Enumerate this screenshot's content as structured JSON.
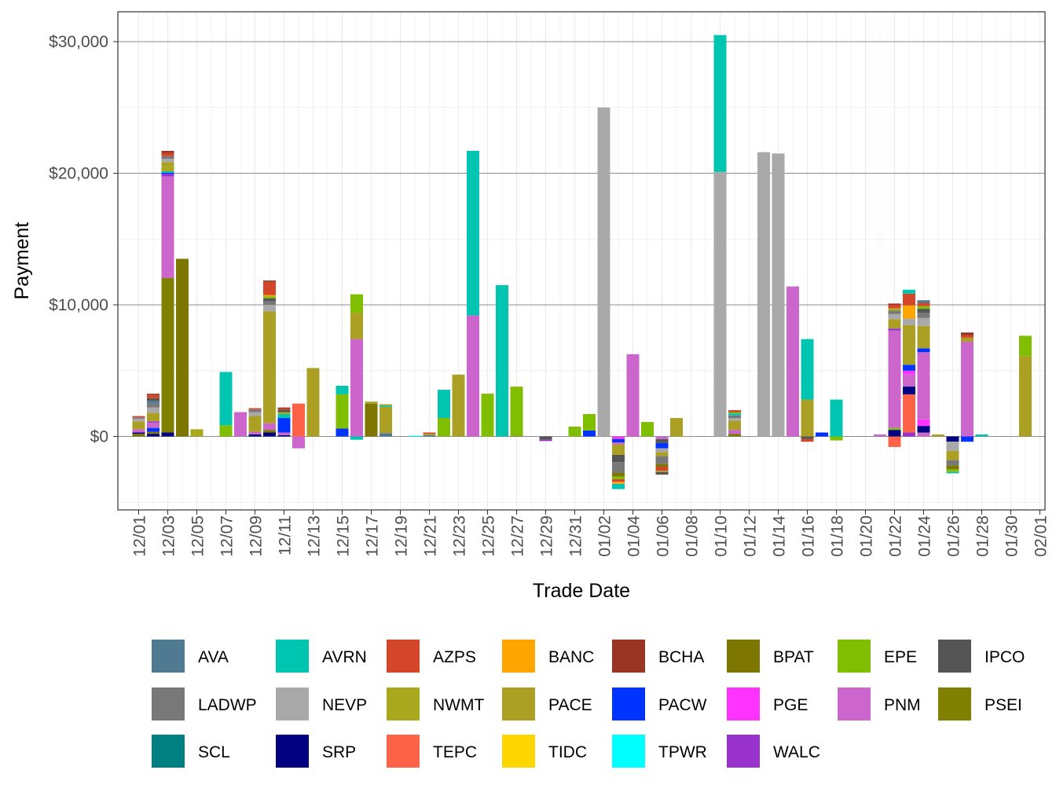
{
  "chart_data": {
    "type": "bar",
    "stacked": true,
    "xlabel": "Trade Date",
    "ylabel": "Payment",
    "ylim": [
      -5700,
      32200
    ],
    "yticks": [
      0,
      10000,
      20000,
      30000
    ],
    "ytick_labels": [
      "$0",
      "$10,000",
      "$20,000",
      "$30,000"
    ],
    "x_tick_labels": [
      "12/01",
      "12/03",
      "12/05",
      "12/07",
      "12/09",
      "12/11",
      "12/13",
      "12/15",
      "12/17",
      "12/19",
      "12/21",
      "12/23",
      "12/25",
      "12/27",
      "12/29",
      "12/31",
      "01/02",
      "01/04",
      "01/06",
      "01/08",
      "01/10",
      "01/12",
      "01/14",
      "01/16",
      "01/18",
      "01/20",
      "01/22",
      "01/24",
      "01/26",
      "01/28",
      "01/30",
      "02/01"
    ],
    "grid": true,
    "legend_position": "bottom",
    "legend": [
      {
        "name": "AVA",
        "color": "#4f7a91"
      },
      {
        "name": "AVRN",
        "color": "#00c5b0"
      },
      {
        "name": "AZPS",
        "color": "#d4462a"
      },
      {
        "name": "BANC",
        "color": "#ffa500"
      },
      {
        "name": "BCHA",
        "color": "#9a3524"
      },
      {
        "name": "BPAT",
        "color": "#7d7600"
      },
      {
        "name": "EPE",
        "color": "#7fbe00"
      },
      {
        "name": "IPCO",
        "color": "#555555"
      },
      {
        "name": "LADWP",
        "color": "#787878"
      },
      {
        "name": "NEVP",
        "color": "#a9a9a9"
      },
      {
        "name": "NWMT",
        "color": "#aaa81e"
      },
      {
        "name": "PACE",
        "color": "#aca024"
      },
      {
        "name": "PACW",
        "color": "#0033ff"
      },
      {
        "name": "PGE",
        "color": "#ff33ff"
      },
      {
        "name": "PNM",
        "color": "#cc66cc"
      },
      {
        "name": "PSEI",
        "color": "#808000"
      },
      {
        "name": "SCL",
        "color": "#008080"
      },
      {
        "name": "SRP",
        "color": "#000080"
      },
      {
        "name": "TEPC",
        "color": "#ff6347"
      },
      {
        "name": "TIDC",
        "color": "#ffd700"
      },
      {
        "name": "TPWR",
        "color": "#00ffff"
      },
      {
        "name": "WALC",
        "color": "#9932cc"
      }
    ],
    "days": [
      {
        "date": "12/01",
        "segments": [
          [
            "BPAT",
            200
          ],
          [
            "SRP",
            100
          ],
          [
            "PNM",
            250
          ],
          [
            "PACE",
            600
          ],
          [
            "NEVP",
            200
          ],
          [
            "LADWP",
            100
          ],
          [
            "AZPS",
            100
          ]
        ]
      },
      {
        "date": "12/02",
        "segments": [
          [
            "SRP",
            200
          ],
          [
            "BPAT",
            150
          ],
          [
            "PACW",
            300
          ],
          [
            "PNM",
            400
          ],
          [
            "WALC",
            100
          ],
          [
            "PACE",
            650
          ],
          [
            "NEVP",
            400
          ],
          [
            "LADWP",
            300
          ],
          [
            "AVA",
            200
          ],
          [
            "IPCO",
            200
          ],
          [
            "AZPS",
            250
          ],
          [
            "BCHA",
            100
          ]
        ]
      },
      {
        "date": "12/03",
        "segments": [
          [
            "SRP",
            300
          ],
          [
            "PSEI",
            11750
          ],
          [
            "PNM",
            7700
          ],
          [
            "WALC",
            200
          ],
          [
            "PACW",
            100
          ],
          [
            "AVRN",
            100
          ],
          [
            "NWMT",
            400
          ],
          [
            "PACE",
            300
          ],
          [
            "NEVP",
            250
          ],
          [
            "LADWP",
            200
          ],
          [
            "AZPS",
            250
          ],
          [
            "BCHA",
            150
          ]
        ]
      },
      {
        "date": "12/04",
        "segments": [
          [
            "BPAT",
            13500
          ]
        ]
      },
      {
        "date": "12/05",
        "segments": [
          [
            "NWMT",
            550
          ]
        ]
      },
      {
        "date": "12/06",
        "segments": []
      },
      {
        "date": "12/07",
        "segments": [
          [
            "EPE",
            850
          ],
          [
            "AVRN",
            4050
          ]
        ]
      },
      {
        "date": "12/08",
        "segments": [
          [
            "PNM",
            1850
          ]
        ]
      },
      {
        "date": "12/09",
        "segments": [
          [
            "SRP",
            150
          ],
          [
            "PNM",
            200
          ],
          [
            "PACE",
            1200
          ],
          [
            "NEVP",
            300
          ],
          [
            "LADWP",
            200
          ],
          [
            "AZPS",
            100
          ]
        ]
      },
      {
        "date": "12/10",
        "segments": [
          [
            "SRP",
            300
          ],
          [
            "BPAT",
            200
          ],
          [
            "PNM",
            500
          ],
          [
            "PACE",
            8500
          ],
          [
            "NEVP",
            500
          ],
          [
            "LADWP",
            300
          ],
          [
            "IPCO",
            200
          ],
          [
            "EPE",
            150
          ],
          [
            "BANC",
            100
          ],
          [
            "AZPS",
            1000
          ],
          [
            "BCHA",
            100
          ]
        ]
      },
      {
        "date": "12/11",
        "segments": [
          [
            "SRP",
            100
          ],
          [
            "PNM",
            200
          ],
          [
            "PACW",
            1100
          ],
          [
            "AVRN",
            300
          ],
          [
            "NWMT",
            150
          ],
          [
            "IPCO",
            150
          ],
          [
            "AZPS",
            100
          ],
          [
            "BCHA",
            100
          ]
        ]
      },
      {
        "date": "12/12",
        "segments": [
          [
            "PNM",
            -900
          ],
          [
            "TEPC",
            2500
          ]
        ]
      },
      {
        "date": "12/13",
        "segments": [
          [
            "PACE",
            5200
          ]
        ]
      },
      {
        "date": "12/14",
        "segments": []
      },
      {
        "date": "12/15",
        "segments": [
          [
            "PACW",
            600
          ],
          [
            "EPE",
            2600
          ],
          [
            "AVRN",
            650
          ]
        ]
      },
      {
        "date": "12/16",
        "segments": [
          [
            "AVRN",
            -250
          ],
          [
            "PNM",
            7400
          ],
          [
            "PACE",
            2000
          ],
          [
            "EPE",
            1400
          ]
        ]
      },
      {
        "date": "12/17",
        "segments": [
          [
            "BPAT",
            2500
          ],
          [
            "NWMT",
            150
          ]
        ]
      },
      {
        "date": "12/18",
        "segments": [
          [
            "AVA",
            250
          ],
          [
            "PACE",
            2000
          ],
          [
            "AVRN",
            100
          ],
          [
            "NWMT",
            100
          ]
        ]
      },
      {
        "date": "12/19",
        "segments": []
      },
      {
        "date": "12/20",
        "segments": [
          [
            "TPWR",
            60
          ]
        ]
      },
      {
        "date": "12/21",
        "segments": [
          [
            "AVA",
            100
          ],
          [
            "PACE",
            100
          ],
          [
            "AZPS",
            100
          ]
        ]
      },
      {
        "date": "12/22",
        "segments": [
          [
            "EPE",
            1400
          ],
          [
            "AVRN",
            2150
          ]
        ]
      },
      {
        "date": "12/23",
        "segments": [
          [
            "PACE",
            4700
          ]
        ]
      },
      {
        "date": "12/24",
        "segments": [
          [
            "PNM",
            9200
          ],
          [
            "AVRN",
            12500
          ]
        ]
      },
      {
        "date": "12/25",
        "segments": [
          [
            "EPE",
            3250
          ]
        ]
      },
      {
        "date": "12/26",
        "segments": [
          [
            "AVRN",
            11500
          ]
        ]
      },
      {
        "date": "12/27",
        "segments": [
          [
            "PSEI",
            50
          ],
          [
            "EPE",
            3700
          ],
          [
            "PACE",
            50
          ]
        ]
      },
      {
        "date": "12/28",
        "segments": []
      },
      {
        "date": "12/29",
        "segments": [
          [
            "IPCO",
            -250
          ],
          [
            "WALC",
            -100
          ]
        ]
      },
      {
        "date": "12/30",
        "segments": []
      },
      {
        "date": "12/31",
        "segments": [
          [
            "EPE",
            750
          ]
        ]
      },
      {
        "date": "01/01",
        "segments": [
          [
            "PACW",
            450
          ],
          [
            "EPE",
            1250
          ]
        ]
      },
      {
        "date": "01/02",
        "segments": [
          [
            "NEVP",
            25000
          ]
        ]
      },
      {
        "date": "01/03",
        "segments": [
          [
            "PGE",
            -200
          ],
          [
            "PACW",
            -250
          ],
          [
            "PNM",
            -150
          ],
          [
            "PACE",
            -800
          ],
          [
            "IPCO",
            -550
          ],
          [
            "LADWP",
            -800
          ],
          [
            "BPAT",
            -300
          ],
          [
            "EPE",
            -200
          ],
          [
            "AZPS",
            -200
          ],
          [
            "BANC",
            -150
          ],
          [
            "AVRN",
            -400
          ]
        ]
      },
      {
        "date": "01/04",
        "segments": [
          [
            "PNM",
            6250
          ]
        ]
      },
      {
        "date": "01/05",
        "segments": [
          [
            "EPE",
            1100
          ]
        ]
      },
      {
        "date": "01/06",
        "segments": [
          [
            "PNM",
            -200
          ],
          [
            "IPCO",
            -300
          ],
          [
            "PACW",
            -400
          ],
          [
            "NEVP",
            -300
          ],
          [
            "PACE",
            -300
          ],
          [
            "LADWP",
            -600
          ],
          [
            "BPAT",
            -200
          ],
          [
            "AZPS",
            -300
          ],
          [
            "NWMT",
            -100
          ],
          [
            "IPCO",
            -200
          ]
        ]
      },
      {
        "date": "01/07",
        "segments": [
          [
            "PACE",
            1400
          ]
        ]
      },
      {
        "date": "01/08",
        "segments": []
      },
      {
        "date": "01/09",
        "segments": []
      },
      {
        "date": "01/10",
        "segments": [
          [
            "NEVP",
            20100
          ],
          [
            "AVRN",
            10400
          ]
        ]
      },
      {
        "date": "01/11",
        "segments": [
          [
            "BPAT",
            200
          ],
          [
            "PNM",
            300
          ],
          [
            "PACE",
            700
          ],
          [
            "NEVP",
            200
          ],
          [
            "LADWP",
            200
          ],
          [
            "AVRN",
            150
          ],
          [
            "EPE",
            100
          ],
          [
            "AZPS",
            150
          ]
        ]
      },
      {
        "date": "01/12",
        "segments": []
      },
      {
        "date": "01/13",
        "segments": [
          [
            "NEVP",
            21600
          ]
        ]
      },
      {
        "date": "01/14",
        "segments": [
          [
            "NEVP",
            21500
          ]
        ]
      },
      {
        "date": "01/15",
        "segments": [
          [
            "PNM",
            11400
          ]
        ]
      },
      {
        "date": "01/16",
        "segments": [
          [
            "PACE",
            2800
          ],
          [
            "AVRN",
            4600
          ],
          [
            "IPCO",
            -200
          ],
          [
            "AZPS",
            -200
          ]
        ]
      },
      {
        "date": "01/17",
        "segments": [
          [
            "PACW",
            300
          ]
        ]
      },
      {
        "date": "01/18",
        "segments": [
          [
            "EPE",
            -300
          ],
          [
            "AVRN",
            2800
          ]
        ]
      },
      {
        "date": "01/19",
        "segments": []
      },
      {
        "date": "01/20",
        "segments": []
      },
      {
        "date": "01/21",
        "segments": [
          [
            "PNM",
            150
          ]
        ]
      },
      {
        "date": "01/22",
        "segments": [
          [
            "TEPC",
            -800
          ],
          [
            "SRP",
            500
          ],
          [
            "EPE",
            150
          ],
          [
            "PNM",
            7400
          ],
          [
            "WALC",
            150
          ],
          [
            "PACE",
            700
          ],
          [
            "NEVP",
            400
          ],
          [
            "LADWP",
            250
          ],
          [
            "NWMT",
            200
          ],
          [
            "AZPS",
            250
          ],
          [
            "BCHA",
            100
          ]
        ]
      },
      {
        "date": "01/23",
        "segments": [
          [
            "WALC",
            300
          ],
          [
            "TEPC",
            2900
          ],
          [
            "SRP",
            600
          ],
          [
            "PNM",
            900
          ],
          [
            "PGE",
            300
          ],
          [
            "PACW",
            450
          ],
          [
            "PACE",
            3000
          ],
          [
            "NEVP",
            500
          ],
          [
            "BANC",
            1000
          ],
          [
            "AZPS",
            900
          ],
          [
            "AVRN",
            300
          ]
        ]
      },
      {
        "date": "01/24",
        "segments": [
          [
            "PNM",
            300
          ],
          [
            "SRP",
            500
          ],
          [
            "PGE",
            500
          ],
          [
            "PNM",
            5100
          ],
          [
            "PACW",
            300
          ],
          [
            "PACE",
            1700
          ],
          [
            "NEVP",
            600
          ],
          [
            "LADWP",
            400
          ],
          [
            "IPCO",
            300
          ],
          [
            "EPE",
            200
          ],
          [
            "AZPS",
            250
          ],
          [
            "AVA",
            200
          ]
        ]
      },
      {
        "date": "01/25",
        "segments": [
          [
            "PACE",
            150
          ]
        ]
      },
      {
        "date": "01/26",
        "segments": [
          [
            "SRP",
            -400
          ],
          [
            "NEVP",
            -700
          ],
          [
            "PACE",
            -700
          ],
          [
            "LADWP",
            -400
          ],
          [
            "BPAT",
            -300
          ],
          [
            "EPE",
            -200
          ],
          [
            "AVRN",
            -100
          ]
        ]
      },
      {
        "date": "01/27",
        "segments": [
          [
            "PACW",
            -400
          ],
          [
            "PNM",
            7200
          ],
          [
            "PACE",
            300
          ],
          [
            "AZPS",
            200
          ],
          [
            "BCHA",
            200
          ]
        ]
      },
      {
        "date": "01/28",
        "segments": [
          [
            "AVRN",
            150
          ]
        ]
      },
      {
        "date": "01/29",
        "segments": []
      },
      {
        "date": "01/30",
        "segments": []
      },
      {
        "date": "01/31",
        "segments": [
          [
            "PACE",
            6100
          ],
          [
            "EPE",
            1550
          ]
        ]
      }
    ]
  }
}
